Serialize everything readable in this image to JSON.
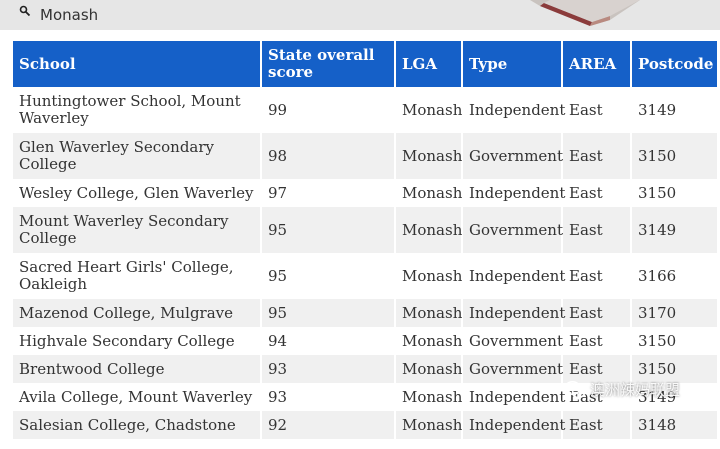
{
  "search": {
    "icon": "search-icon",
    "value": "Monash"
  },
  "table": {
    "headers": {
      "school": "School",
      "score": "State overall score",
      "lga": "LGA",
      "type": "Type",
      "area": "AREA",
      "postcode": "Postcode"
    },
    "rows": [
      {
        "school": "Huntingtower School, Mount Waverley",
        "score": "99",
        "lga": "Monash",
        "type": "Independent",
        "area": "East",
        "postcode": "3149"
      },
      {
        "school": "Glen Waverley Secondary College",
        "score": "98",
        "lga": "Monash",
        "type": "Government",
        "area": "East",
        "postcode": "3150"
      },
      {
        "school": "Wesley College, Glen Waverley",
        "score": "97",
        "lga": "Monash",
        "type": "Independent",
        "area": "East",
        "postcode": "3150"
      },
      {
        "school": "Mount Waverley Secondary College",
        "score": "95",
        "lga": "Monash",
        "type": "Government",
        "area": "East",
        "postcode": "3149"
      },
      {
        "school": "Sacred Heart Girls' College, Oakleigh",
        "score": "95",
        "lga": "Monash",
        "type": "Independent",
        "area": "East",
        "postcode": "3166"
      },
      {
        "school": "Mazenod College, Mulgrave",
        "score": "95",
        "lga": "Monash",
        "type": "Independent",
        "area": "East",
        "postcode": "3170"
      },
      {
        "school": "Highvale Secondary College",
        "score": "94",
        "lga": "Monash",
        "type": "Government",
        "area": "East",
        "postcode": "3150"
      },
      {
        "school": "Brentwood College",
        "score": "93",
        "lga": "Monash",
        "type": "Government",
        "area": "East",
        "postcode": "3150"
      },
      {
        "school": "Avila College, Mount Waverley",
        "score": "93",
        "lga": "Monash",
        "type": "Independent",
        "area": "East",
        "postcode": "3149"
      },
      {
        "school": "Salesian College, Chadstone",
        "score": "92",
        "lga": "Monash",
        "type": "Independent",
        "area": "East",
        "postcode": "3148"
      }
    ]
  },
  "watermark": {
    "icon": "wechat-icon",
    "text": "澳洲辣妈联盟"
  },
  "colors": {
    "header_bg": "#1560c8",
    "header_text": "#ffffff",
    "stripe": "#f0f0f0"
  }
}
